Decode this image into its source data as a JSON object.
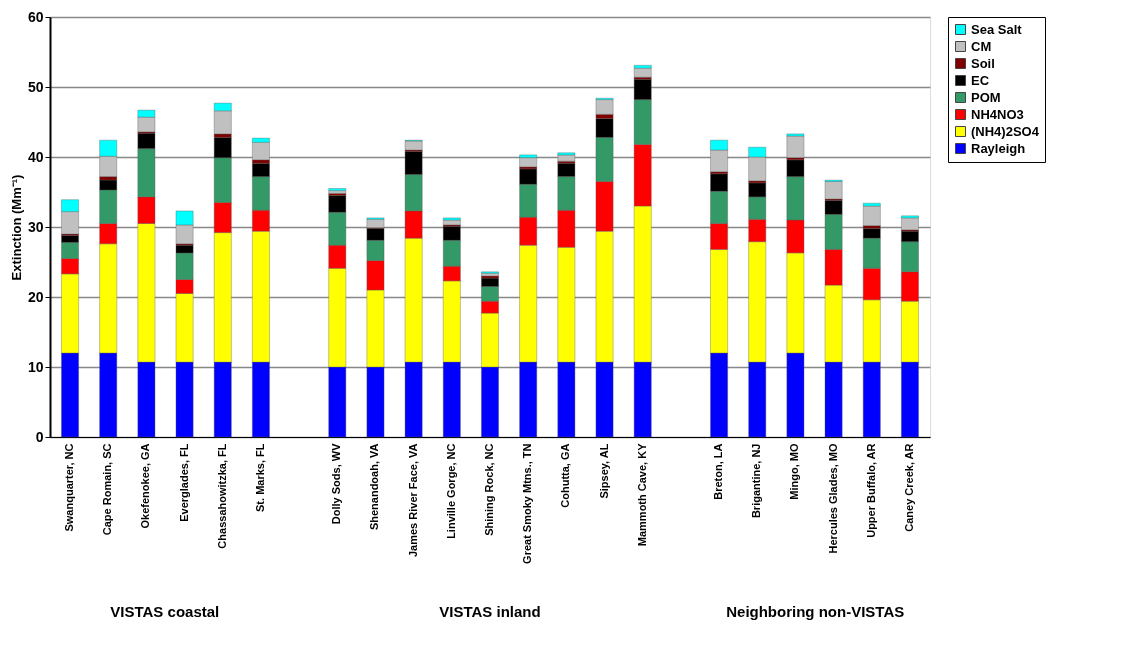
{
  "chart_data": {
    "type": "bar",
    "stacked": true,
    "ylabel": "Extinction (Mm⁻¹)",
    "categories": [
      "Swanquarter, NC",
      "Cape Romain, SC",
      "Okefenokee, GA",
      "Everglades, FL",
      "Chassahowitzka, FL",
      "St. Marks, FL",
      null,
      "Dolly Sods, WV",
      "Shenandoah, VA",
      "James River Face, VA",
      "Linville Gorge, NC",
      "Shining Rock, NC",
      "Great Smoky Mtns., TN",
      "Cohutta, GA",
      "Sipsey, AL",
      "Mammoth Cave, KY",
      null,
      "Breton, LA",
      "Brigantine, NJ",
      "Mingo, MO",
      "Hercules Glades, MO",
      "Upper Buffalo, AR",
      "Caney Creek, AR"
    ],
    "series": [
      {
        "name": "Rayleigh",
        "color": "#0000ff",
        "values": [
          12,
          12,
          10.7,
          10.7,
          10.7,
          10.7,
          null,
          10,
          10,
          10.7,
          10.7,
          10,
          10.7,
          10.7,
          10.7,
          10.7,
          null,
          12,
          10.7,
          12,
          10.7,
          10.7,
          10.7
        ]
      },
      {
        "name": "(NH4)2SO4",
        "color": "#ffff00",
        "values": [
          11.3,
          15.6,
          19.8,
          9.8,
          18.5,
          18.7,
          null,
          14.1,
          11,
          17.7,
          11.6,
          7.7,
          16.7,
          16.4,
          18.7,
          22.3,
          null,
          14.8,
          17.2,
          14.3,
          11,
          8.9,
          8.7
        ]
      },
      {
        "name": "NH4NO3",
        "color": "#ff0000",
        "values": [
          2.2,
          2.9,
          3.8,
          2,
          4.3,
          3,
          null,
          3.3,
          4.2,
          3.9,
          2.1,
          1.7,
          4,
          5.3,
          7.1,
          8.8,
          null,
          3.7,
          3.2,
          4.7,
          5.1,
          4.5,
          4.2
        ]
      },
      {
        "name": "POM",
        "color": "#339966",
        "values": [
          2.3,
          4.8,
          6.9,
          3.8,
          6.4,
          4.8,
          null,
          4.7,
          2.9,
          5.2,
          3.7,
          2.1,
          4.7,
          4.8,
          6.3,
          6.4,
          null,
          4.6,
          3.2,
          6.2,
          5,
          4.3,
          4.3
        ]
      },
      {
        "name": "EC",
        "color": "#000000",
        "values": [
          1,
          1.4,
          2.2,
          1.1,
          2.9,
          1.9,
          null,
          2.4,
          1.7,
          3.3,
          2,
          1.2,
          2.2,
          1.9,
          2.7,
          2.9,
          null,
          2.5,
          2,
          2.4,
          2,
          1.4,
          1.5
        ]
      },
      {
        "name": "Soil",
        "color": "#800000",
        "values": [
          0.2,
          0.5,
          0.2,
          0.2,
          0.5,
          0.5,
          null,
          0.3,
          0.1,
          0.2,
          0.2,
          0.3,
          0.3,
          0.3,
          0.6,
          0.3,
          null,
          0.3,
          0.3,
          0.3,
          0.2,
          0.4,
          0.2
        ]
      },
      {
        "name": "CM",
        "color": "#c0c0c0",
        "values": [
          3.2,
          2.9,
          2.1,
          2.7,
          3.3,
          2.5,
          null,
          0.4,
          1.2,
          1.3,
          0.7,
          0.4,
          1.3,
          0.9,
          2.1,
          1.3,
          null,
          3.1,
          3.4,
          3.1,
          2.5,
          2.8,
          1.7
        ]
      },
      {
        "name": "Sea Salt",
        "color": "#00ffff",
        "values": [
          1.7,
          2.3,
          1,
          2,
          1.1,
          0.6,
          null,
          0.3,
          0.2,
          0.1,
          0.3,
          0.2,
          0.4,
          0.3,
          0.2,
          0.4,
          null,
          1.4,
          1.4,
          0.3,
          0.2,
          0.4,
          0.3
        ]
      }
    ],
    "ylim": [
      0,
      60
    ],
    "yticks": [
      0,
      10,
      20,
      30,
      40,
      50,
      60
    ],
    "grid": "y",
    "legend": "right",
    "annotations": [
      "VISTAS coastal",
      "VISTAS inland",
      "Neighboring non-VISTAS"
    ]
  }
}
